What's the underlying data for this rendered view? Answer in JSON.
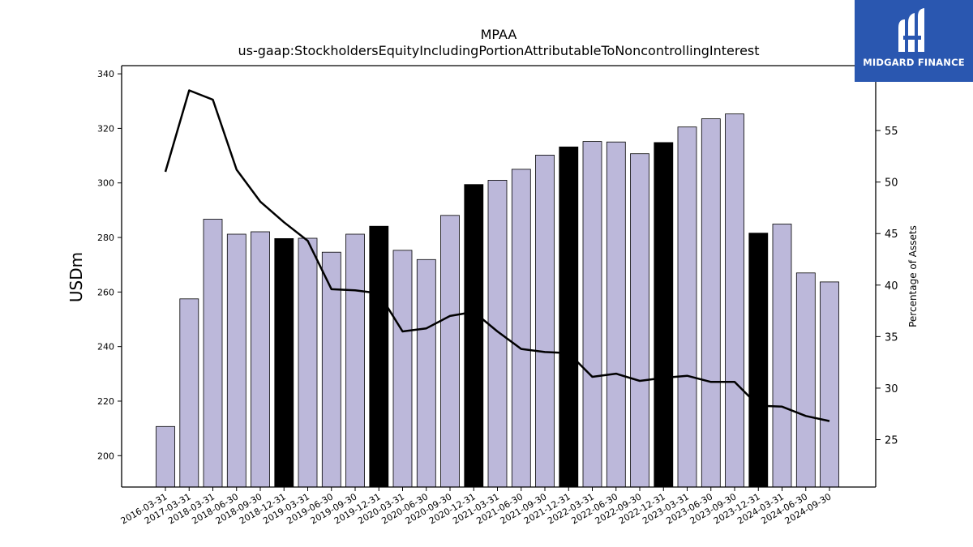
{
  "header": {
    "title": "MPAA",
    "subtitle": "us-gaap:StockholdersEquityIncludingPortionAttributableToNoncontrollingInterest"
  },
  "logo": {
    "text": "MIDGARD FINANCE"
  },
  "chart_data": {
    "type": "bar",
    "categories": [
      "2016-03-31",
      "2017-03-31",
      "2018-03-31",
      "2018-06-30",
      "2018-09-30",
      "2018-12-31",
      "2019-03-31",
      "2019-06-30",
      "2019-09-30",
      "2019-12-31",
      "2020-03-31",
      "2020-06-30",
      "2020-09-30",
      "2020-12-31",
      "2021-03-31",
      "2021-06-30",
      "2021-09-30",
      "2021-12-31",
      "2022-03-31",
      "2022-06-30",
      "2022-09-30",
      "2022-12-31",
      "2023-03-31",
      "2023-06-30",
      "2023-09-30",
      "2023-12-31",
      "2024-03-31",
      "2024-06-30",
      "2024-09-30"
    ],
    "series": [
      {
        "values": [
          210.7,
          257.5,
          286.7,
          281.2,
          282.1,
          279.6,
          279.7,
          274.6,
          281.2,
          284.1,
          275.3,
          271.9,
          288.1,
          299.4,
          301.0,
          305.0,
          310.2,
          313.2,
          315.2,
          315.0,
          310.7,
          314.8,
          320.5,
          323.5,
          325.3,
          281.6,
          284.9,
          267.0,
          263.7
        ]
      },
      {
        "values": [
          51.0,
          58.9,
          58.0,
          51.2,
          48.1,
          46.1,
          44.3,
          39.6,
          39.5,
          39.2,
          35.5,
          35.8,
          37.0,
          37.4,
          35.5,
          33.8,
          33.5,
          33.4,
          31.1,
          31.4,
          30.7,
          31.0,
          31.2,
          30.6,
          30.6,
          28.3,
          28.2,
          27.3,
          26.8
        ]
      }
    ],
    "highlight_color": "#000000",
    "bar_color": "#bcb8da",
    "line_color": "#000000",
    "ylabel": "USDm",
    "y2label": "Percentage of Assets",
    "ylim": [
      188.5,
      343
    ],
    "y2lim": [
      20.4,
      61.3
    ],
    "yticks": [
      200,
      220,
      240,
      260,
      280,
      300,
      320,
      340
    ],
    "y2ticks": [
      25,
      30,
      35,
      40,
      45,
      50,
      55
    ]
  }
}
